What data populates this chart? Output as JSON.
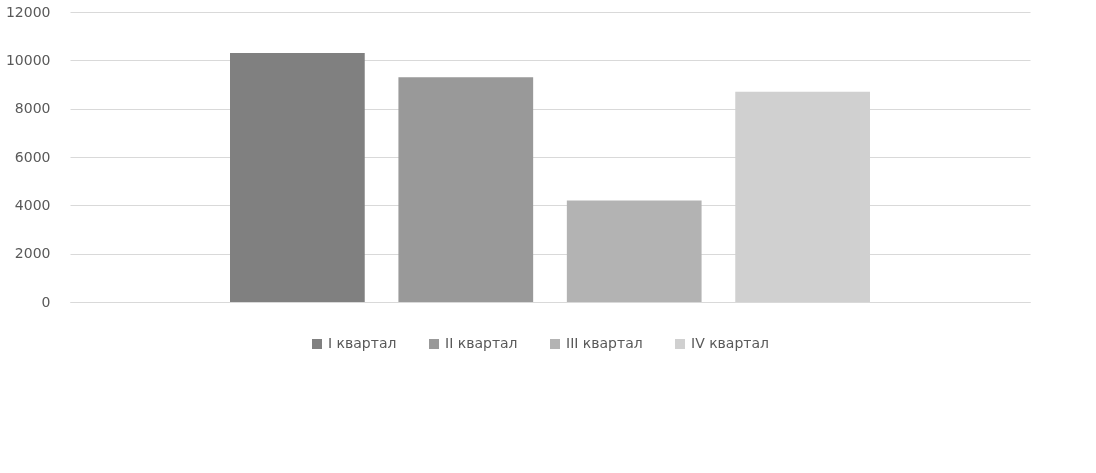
{
  "chart_data": {
    "type": "bar",
    "categories": [
      null
    ],
    "series": [
      {
        "name": "I квартал",
        "color": "#808080",
        "values": [
          10300
        ]
      },
      {
        "name": "II квартал",
        "color": "#999999",
        "values": [
          9300
        ]
      },
      {
        "name": "III квартал",
        "color": "#b3b3b3",
        "values": [
          4200
        ]
      },
      {
        "name": "IV квартал",
        "color": "#d0d0d0",
        "values": [
          8700
        ]
      }
    ],
    "ylim": [
      0,
      12000
    ],
    "yticks": [
      0,
      2000,
      4000,
      6000,
      8000,
      10000,
      12000
    ],
    "grid": "y",
    "legend": "bottom",
    "tick_labels": "y"
  }
}
